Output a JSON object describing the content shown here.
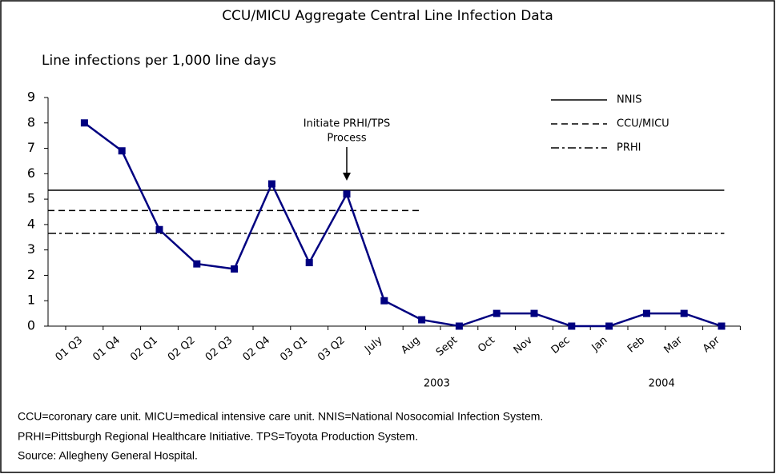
{
  "chart_data": {
    "type": "line",
    "title": "CCU/MICU Aggregate Central Line Infection Data",
    "y_label": "Line infections per 1,000 line days",
    "categories": [
      "01 Q3",
      "01 Q4",
      "02 Q1",
      "02 Q2",
      "02 Q3",
      "02 Q4",
      "03 Q1",
      "03 Q2",
      "July",
      "Aug",
      "Sept",
      "Oct",
      "Nov",
      "Dec",
      "Jan",
      "Feb",
      "Mar",
      "Apr"
    ],
    "series": [
      {
        "name": "Line infections",
        "color": "#000080",
        "values": [
          8,
          6.9,
          3.8,
          2.45,
          2.25,
          5.6,
          2.5,
          5.2,
          1,
          0.25,
          0,
          0.5,
          0.5,
          0,
          0,
          0.5,
          0.5,
          0
        ]
      }
    ],
    "reference_lines": [
      {
        "name": "NNIS",
        "value": 5.35,
        "style": "solid"
      },
      {
        "name": "CCU/MICU",
        "value": 4.55,
        "style": "dashed",
        "end": "Aug"
      },
      {
        "name": "PRHI",
        "value": 3.65,
        "style": "dashdot"
      }
    ],
    "ylim": [
      0,
      9
    ],
    "yticks": [
      0,
      1,
      2,
      3,
      4,
      5,
      6,
      7,
      8,
      9
    ],
    "annotations": [
      {
        "lines": [
          "Initiate PRHI/TPS",
          "Process"
        ],
        "at": "03 Q2"
      },
      {
        "text": "2003",
        "at": "Sept"
      },
      {
        "text": "2004",
        "at": "Mar"
      }
    ],
    "legend": "top-right",
    "notes": [
      "CCU=coronary care unit. MICU=medical intensive care unit. NNIS=National Nosocomial Infection System.",
      "PRHI=Pittsburgh Regional Healthcare Initiative. TPS=Toyota Production System.",
      "Source: Allegheny General Hospital."
    ]
  }
}
